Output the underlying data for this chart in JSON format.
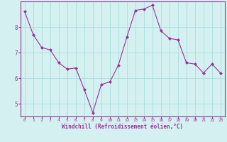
{
  "x": [
    0,
    1,
    2,
    3,
    4,
    5,
    6,
    7,
    8,
    9,
    10,
    11,
    12,
    13,
    14,
    15,
    16,
    17,
    18,
    19,
    20,
    21,
    22,
    23
  ],
  "y": [
    8.6,
    7.7,
    7.2,
    7.1,
    6.6,
    6.35,
    6.4,
    5.55,
    4.65,
    5.75,
    5.85,
    6.5,
    7.6,
    8.65,
    8.7,
    8.85,
    7.85,
    7.55,
    7.5,
    6.6,
    6.55,
    6.2,
    6.55,
    6.2
  ],
  "line_color": "#993399",
  "marker": "D",
  "marker_size": 2,
  "bg_color": "#d4f0f0",
  "grid_color": "#aadddd",
  "axis_color": "#993399",
  "tick_color": "#993399",
  "xlabel": "Windchill (Refroidissement éolien,°C)",
  "ylim": [
    4.5,
    9.0
  ],
  "xlim": [
    -0.5,
    23.5
  ],
  "yticks": [
    5,
    6,
    7,
    8
  ],
  "xticks": [
    0,
    1,
    2,
    3,
    4,
    5,
    6,
    7,
    8,
    9,
    10,
    11,
    12,
    13,
    14,
    15,
    16,
    17,
    18,
    19,
    20,
    21,
    22,
    23
  ]
}
